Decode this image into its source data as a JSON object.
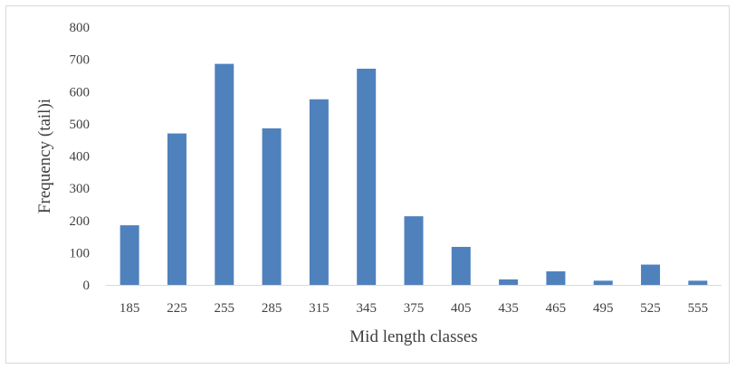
{
  "chart_data": {
    "type": "bar",
    "xlabel": "Mid length classes",
    "ylabel": "Frequency (tail)i",
    "ylim": [
      0,
      800
    ],
    "yticks": [
      0,
      100,
      200,
      300,
      400,
      500,
      600,
      700,
      800
    ],
    "grid": false,
    "legend": "none",
    "bar_color": "#4f81bd",
    "categories": [
      "185",
      "225",
      "255",
      "285",
      "315",
      "345",
      "375",
      "405",
      "435",
      "465",
      "495",
      "525",
      "555"
    ],
    "values": [
      185,
      470,
      686,
      486,
      576,
      671,
      213,
      118,
      17,
      42,
      13,
      63,
      13
    ]
  }
}
